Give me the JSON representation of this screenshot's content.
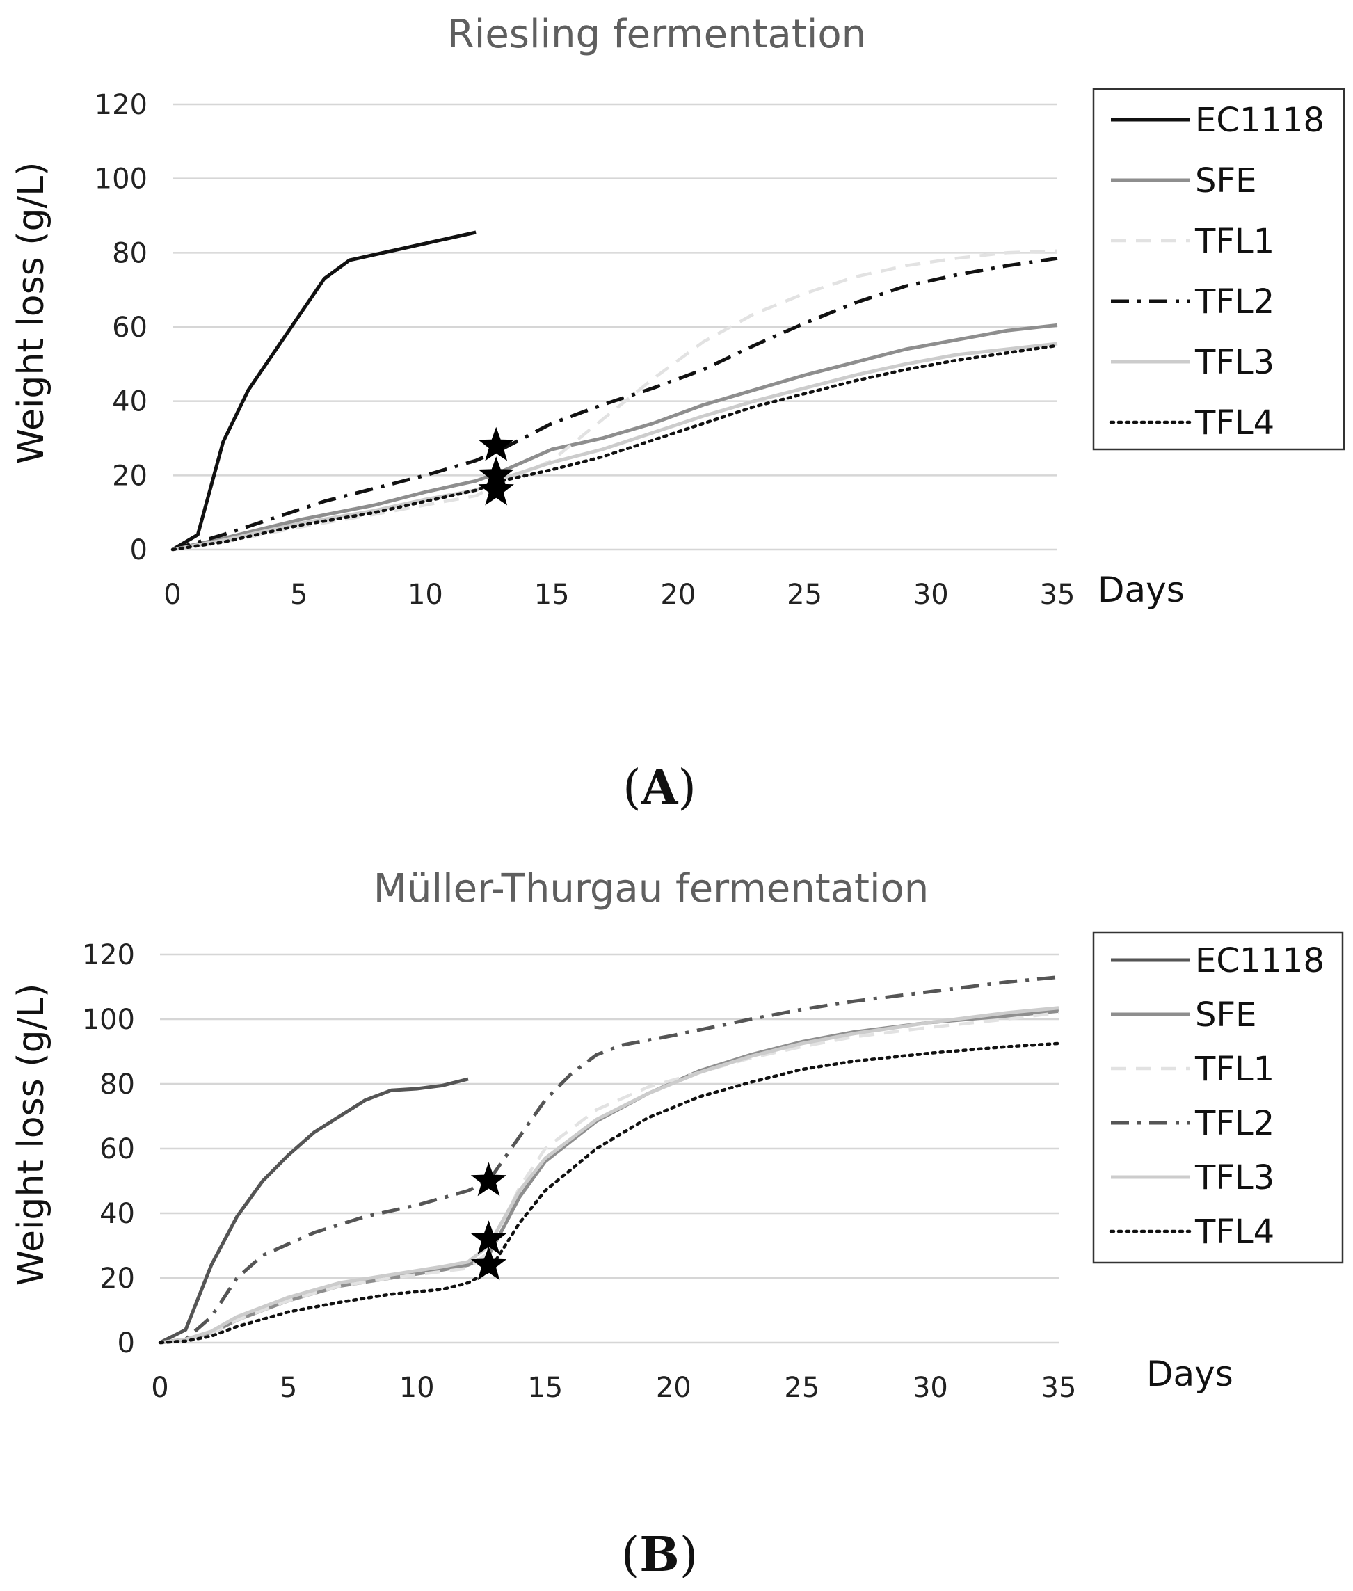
{
  "chart_data": [
    {
      "type": "line",
      "panel": "(A)",
      "panel_parts": {
        "open": "(",
        "letter": "A",
        "close": ")"
      },
      "title": "Riesling fermentation",
      "xlabel": "Days",
      "ylabel": "Weight loss (g/L)",
      "xlim": [
        0,
        35
      ],
      "ylim": [
        0,
        120
      ],
      "xticks": [
        0,
        5,
        10,
        15,
        20,
        25,
        30,
        35
      ],
      "yticks": [
        0,
        20,
        40,
        60,
        80,
        100,
        120
      ],
      "grid": true,
      "legend_position": "right",
      "series": [
        {
          "name": "EC1118",
          "color": "#111111",
          "dash": "solid",
          "x": [
            0,
            1,
            2,
            3,
            4,
            5,
            6,
            7,
            8,
            9,
            10,
            11,
            12
          ],
          "y": [
            0,
            4,
            29,
            43,
            53,
            63,
            73,
            78,
            79.5,
            81,
            82.5,
            84,
            85.5
          ]
        },
        {
          "name": "SFE",
          "color": "#8e8e8e",
          "dash": "solid",
          "x": [
            0,
            2,
            5,
            8,
            10,
            12,
            13,
            15,
            17,
            19,
            21,
            23,
            25,
            27,
            29,
            31,
            33,
            35
          ],
          "y": [
            0,
            3,
            8,
            12,
            15.5,
            18.5,
            21,
            27,
            30,
            34,
            39,
            43,
            47,
            50.5,
            54,
            56.5,
            59,
            60.5
          ]
        },
        {
          "name": "TFL1",
          "color": "#e2e2e2",
          "dash": "dash",
          "x": [
            0,
            2,
            5,
            8,
            10,
            12,
            13,
            15,
            17,
            19,
            21,
            23,
            25,
            27,
            29,
            31,
            33,
            35
          ],
          "y": [
            0,
            2,
            6,
            9.5,
            12,
            14.5,
            18,
            24,
            35,
            46,
            56,
            63.5,
            69,
            73.5,
            76.5,
            78.5,
            80,
            80.5
          ]
        },
        {
          "name": "TFL2",
          "color": "#111111",
          "dash": "dashdot",
          "x": [
            0,
            2,
            4,
            6,
            8,
            10,
            12,
            13,
            15,
            17,
            19,
            21,
            23,
            25,
            27,
            29,
            31,
            33,
            35
          ],
          "y": [
            0,
            4,
            8.5,
            13,
            16.5,
            20,
            24,
            27,
            34,
            39,
            43.5,
            48.5,
            55,
            61,
            66.5,
            71,
            74,
            76.5,
            78.5
          ]
        },
        {
          "name": "TFL3",
          "color": "#cccccc",
          "dash": "solid",
          "x": [
            0,
            2,
            5,
            8,
            10,
            12,
            13,
            15,
            17,
            19,
            21,
            23,
            25,
            27,
            29,
            31,
            33,
            35
          ],
          "y": [
            0,
            2.5,
            7,
            10.5,
            13.5,
            16,
            19,
            23.5,
            27,
            31.5,
            36,
            40,
            43.5,
            47,
            50,
            52.5,
            54,
            55.5
          ]
        },
        {
          "name": "TFL4",
          "color": "#111111",
          "dash": "dot",
          "x": [
            0,
            2,
            5,
            8,
            10,
            12,
            13,
            15,
            17,
            19,
            21,
            23,
            25,
            27,
            29,
            31,
            33,
            35
          ],
          "y": [
            0,
            2,
            6.5,
            10,
            13,
            16,
            18.5,
            21.5,
            25,
            29.5,
            34,
            38.5,
            42,
            45.5,
            48.5,
            51,
            53,
            55
          ]
        }
      ],
      "stars": [
        {
          "x": 12.8,
          "y": 28
        },
        {
          "x": 12.8,
          "y": 20
        },
        {
          "x": 12.8,
          "y": 16
        }
      ]
    },
    {
      "type": "line",
      "panel": "(B)",
      "panel_parts": {
        "open": "(",
        "letter": "B",
        "close": ")"
      },
      "title": "Müller-Thurgau fermentation",
      "xlabel": "Days",
      "ylabel": "Weight loss (g/L)",
      "xlim": [
        0,
        35
      ],
      "ylim": [
        0,
        120
      ],
      "xticks": [
        0,
        5,
        10,
        15,
        20,
        25,
        30,
        35
      ],
      "yticks": [
        0,
        20,
        40,
        60,
        80,
        100,
        120
      ],
      "grid": true,
      "legend_position": "right",
      "series": [
        {
          "name": "EC1118",
          "color": "#555555",
          "dash": "solid",
          "x": [
            0,
            1,
            2,
            3,
            4,
            5,
            6,
            7,
            8,
            9,
            10,
            11,
            12
          ],
          "y": [
            0,
            4,
            24,
            39,
            50,
            58,
            65,
            70,
            75,
            78,
            78.5,
            79.5,
            81.5
          ]
        },
        {
          "name": "SFE",
          "color": "#8e8e8e",
          "dash": "solid",
          "x": [
            0,
            1,
            2,
            3,
            5,
            7,
            9,
            11,
            12,
            12.8,
            14,
            15,
            17,
            19,
            21,
            23,
            25,
            27,
            30,
            33,
            35
          ],
          "y": [
            0,
            1,
            3,
            7,
            13,
            17.5,
            20,
            22.5,
            24,
            27,
            45,
            56,
            68.5,
            77,
            84,
            89,
            93,
            96,
            99,
            101,
            102.5
          ]
        },
        {
          "name": "TFL1",
          "color": "#e2e2e2",
          "dash": "dash",
          "x": [
            0,
            1,
            2,
            3,
            5,
            7,
            9,
            11,
            12,
            12.8,
            14,
            15,
            17,
            19,
            21,
            23,
            25,
            27,
            30,
            33,
            35
          ],
          "y": [
            0,
            1,
            3,
            7,
            13,
            17.5,
            20,
            22,
            23,
            28,
            48,
            60,
            72,
            79,
            83.5,
            88,
            91.5,
            94.5,
            97.5,
            100,
            102
          ]
        },
        {
          "name": "TFL2",
          "color": "#555555",
          "dash": "dashdot",
          "x": [
            0,
            1,
            2,
            3,
            4,
            6,
            8,
            10,
            12,
            12.8,
            13.5,
            15,
            16,
            17,
            18,
            20,
            23,
            25,
            27,
            30,
            33,
            35
          ],
          "y": [
            0,
            1,
            8,
            20,
            27,
            34,
            39,
            42.5,
            47,
            50,
            58,
            75,
            83,
            89,
            92,
            95,
            100,
            103,
            105.5,
            108.5,
            111.5,
            113
          ]
        },
        {
          "name": "TFL3",
          "color": "#cccccc",
          "dash": "solid",
          "x": [
            0,
            1,
            2,
            3,
            5,
            7,
            9,
            11,
            12,
            12.8,
            14,
            15,
            17,
            19,
            21,
            23,
            25,
            27,
            30,
            33,
            35
          ],
          "y": [
            0,
            1,
            3.5,
            8,
            14,
            18.5,
            21,
            23.5,
            25,
            30,
            47,
            57,
            69,
            77,
            83.5,
            88.5,
            92.5,
            95.5,
            99,
            102,
            103.5
          ]
        },
        {
          "name": "TFL4",
          "color": "#111111",
          "dash": "dot",
          "x": [
            0,
            1,
            2,
            3,
            5,
            7,
            9,
            11,
            12,
            12.8,
            14,
            15,
            17,
            19,
            21,
            23,
            25,
            27,
            30,
            33,
            35
          ],
          "y": [
            0,
            0.5,
            2,
            5,
            9.5,
            12.5,
            15,
            16.5,
            18.5,
            22,
            37,
            47,
            60,
            69.5,
            76,
            80.5,
            84.5,
            87,
            89.5,
            91.5,
            92.5
          ]
        }
      ],
      "stars": [
        {
          "x": 12.8,
          "y": 50
        },
        {
          "x": 12.8,
          "y": 32
        },
        {
          "x": 12.8,
          "y": 24
        }
      ]
    }
  ]
}
